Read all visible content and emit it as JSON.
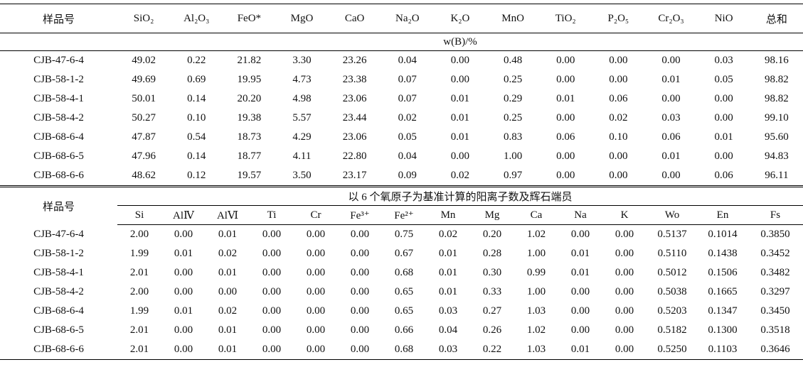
{
  "table1": {
    "header": [
      "样品号",
      "SiO₂",
      "Al₂O₃",
      "FeO*",
      "MgO",
      "CaO",
      "Na₂O",
      "K₂O",
      "MnO",
      "TiO₂",
      "P₂O₅",
      "Cr₂O₃",
      "NiO",
      "总和"
    ],
    "unit": "w(B)/%",
    "rows": [
      [
        "CJB-47-6-4",
        "49.02",
        "0.22",
        "21.82",
        "3.30",
        "23.26",
        "0.04",
        "0.00",
        "0.48",
        "0.00",
        "0.00",
        "0.00",
        "0.03",
        "98.16"
      ],
      [
        "CJB-58-1-2",
        "49.69",
        "0.69",
        "19.95",
        "4.73",
        "23.38",
        "0.07",
        "0.00",
        "0.25",
        "0.00",
        "0.00",
        "0.01",
        "0.05",
        "98.82"
      ],
      [
        "CJB-58-4-1",
        "50.01",
        "0.14",
        "20.20",
        "4.98",
        "23.06",
        "0.07",
        "0.01",
        "0.29",
        "0.01",
        "0.06",
        "0.00",
        "0.00",
        "98.82"
      ],
      [
        "CJB-58-4-2",
        "50.27",
        "0.10",
        "19.38",
        "5.57",
        "23.44",
        "0.02",
        "0.01",
        "0.25",
        "0.00",
        "0.02",
        "0.03",
        "0.00",
        "99.10"
      ],
      [
        "CJB-68-6-4",
        "47.87",
        "0.54",
        "18.73",
        "4.29",
        "23.06",
        "0.05",
        "0.01",
        "0.83",
        "0.06",
        "0.10",
        "0.06",
        "0.01",
        "95.60"
      ],
      [
        "CJB-68-6-5",
        "47.96",
        "0.14",
        "18.77",
        "4.11",
        "22.80",
        "0.04",
        "0.00",
        "1.00",
        "0.00",
        "0.00",
        "0.01",
        "0.00",
        "94.83"
      ],
      [
        "CJB-68-6-6",
        "48.62",
        "0.12",
        "19.57",
        "3.50",
        "23.17",
        "0.09",
        "0.02",
        "0.97",
        "0.00",
        "0.00",
        "0.00",
        "0.06",
        "96.11"
      ]
    ]
  },
  "table2": {
    "header_label": "样品号",
    "group_title": "以 6 个氧原子为基准计算的阳离子数及辉石端员",
    "header": [
      "Si",
      "AlⅣ",
      "AlⅥ",
      "Ti",
      "Cr",
      "Fe³⁺",
      "Fe²⁺",
      "Mn",
      "Mg",
      "Ca",
      "Na",
      "K",
      "Wo",
      "En",
      "Fs"
    ],
    "rows": [
      [
        "CJB-47-6-4",
        "2.00",
        "0.00",
        "0.01",
        "0.00",
        "0.00",
        "0.00",
        "0.75",
        "0.02",
        "0.20",
        "1.02",
        "0.00",
        "0.00",
        "0.5137",
        "0.1014",
        "0.3850"
      ],
      [
        "CJB-58-1-2",
        "1.99",
        "0.01",
        "0.02",
        "0.00",
        "0.00",
        "0.00",
        "0.67",
        "0.01",
        "0.28",
        "1.00",
        "0.01",
        "0.00",
        "0.5110",
        "0.1438",
        "0.3452"
      ],
      [
        "CJB-58-4-1",
        "2.01",
        "0.00",
        "0.01",
        "0.00",
        "0.00",
        "0.00",
        "0.68",
        "0.01",
        "0.30",
        "0.99",
        "0.01",
        "0.00",
        "0.5012",
        "0.1506",
        "0.3482"
      ],
      [
        "CJB-58-4-2",
        "2.00",
        "0.00",
        "0.00",
        "0.00",
        "0.00",
        "0.00",
        "0.65",
        "0.01",
        "0.33",
        "1.00",
        "0.00",
        "0.00",
        "0.5038",
        "0.1665",
        "0.3297"
      ],
      [
        "CJB-68-6-4",
        "1.99",
        "0.01",
        "0.02",
        "0.00",
        "0.00",
        "0.00",
        "0.65",
        "0.03",
        "0.27",
        "1.03",
        "0.00",
        "0.00",
        "0.5203",
        "0.1347",
        "0.3450"
      ],
      [
        "CJB-68-6-5",
        "2.01",
        "0.00",
        "0.01",
        "0.00",
        "0.00",
        "0.00",
        "0.66",
        "0.04",
        "0.26",
        "1.02",
        "0.00",
        "0.00",
        "0.5182",
        "0.1300",
        "0.3518"
      ],
      [
        "CJB-68-6-6",
        "2.01",
        "0.00",
        "0.01",
        "0.00",
        "0.00",
        "0.00",
        "0.68",
        "0.03",
        "0.22",
        "1.03",
        "0.01",
        "0.00",
        "0.5250",
        "0.1103",
        "0.3646"
      ]
    ]
  }
}
